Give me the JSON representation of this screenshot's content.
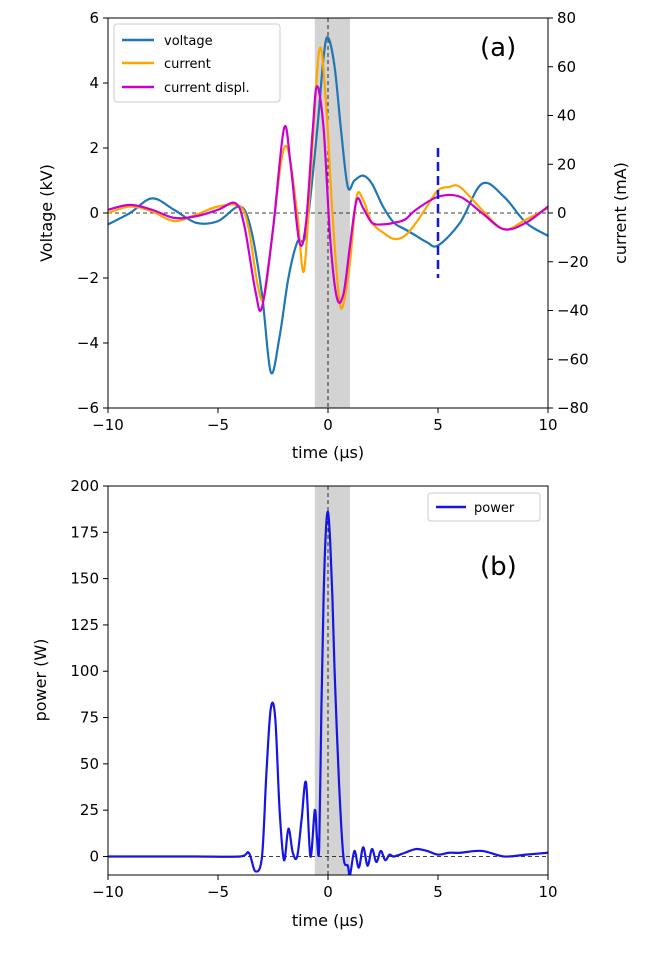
{
  "chart_data": [
    {
      "type": "line",
      "panel_label": "(a)",
      "xlabel": "time (μs)",
      "ylabel": "Voltage (kV)",
      "y2label": "current (mA)",
      "xlim": [
        -10,
        10
      ],
      "ylim": [
        -6,
        6
      ],
      "y2lim": [
        -80,
        80
      ],
      "xticks": [
        -10,
        -5,
        0,
        5,
        10
      ],
      "yticks": [
        -6,
        -4,
        -2,
        0,
        2,
        4,
        6
      ],
      "y2ticks": [
        -80,
        -60,
        -40,
        -20,
        0,
        20,
        40,
        60,
        80
      ],
      "shaded_region": [
        -0.6,
        1.0
      ],
      "vertical_marker": {
        "x": 5.0,
        "y_range": [
          -2.0,
          2.0
        ],
        "color": "#1515e6"
      },
      "legend_position": "top-left",
      "series": [
        {
          "name": "voltage",
          "color": "#1f77b4",
          "axis": "left",
          "x": [
            -10,
            -9,
            -8,
            -7,
            -6,
            -5,
            -4,
            -3.5,
            -3,
            -2.6,
            -2.2,
            -1.8,
            -1.4,
            -1,
            -0.5,
            -0.2,
            0,
            0.3,
            0.6,
            0.9,
            1.2,
            1.6,
            2,
            2.5,
            3,
            3.5,
            4,
            4.5,
            5,
            6,
            7,
            8,
            9,
            10
          ],
          "y": [
            -0.35,
            0.0,
            0.45,
            0.1,
            -0.3,
            -0.25,
            0.2,
            -0.5,
            -2.5,
            -4.9,
            -3.8,
            -2.0,
            -0.9,
            -0.6,
            2.5,
            4.8,
            5.4,
            4.5,
            2.5,
            0.8,
            1.0,
            1.15,
            0.9,
            0.2,
            -0.3,
            -0.5,
            -0.7,
            -0.9,
            -1.0,
            -0.3,
            0.9,
            0.5,
            -0.3,
            -0.7
          ]
        },
        {
          "name": "current",
          "color": "#ffa500",
          "axis": "left",
          "x": [
            -10,
            -9,
            -8,
            -7,
            -6,
            -5,
            -4,
            -3.6,
            -3.2,
            -2.9,
            -2.5,
            -2.1,
            -1.8,
            -1.4,
            -1.1,
            -0.8,
            -0.4,
            -0.1,
            0.2,
            0.5,
            0.7,
            1.0,
            1.3,
            1.6,
            2.0,
            2.5,
            3.0,
            3.5,
            4.0,
            4.5,
            5.0,
            5.5,
            6.0,
            7.0,
            8.0,
            9.0,
            10.0
          ],
          "y": [
            0.0,
            0.2,
            0.05,
            -0.25,
            -0.05,
            0.2,
            0.2,
            -0.5,
            -2.2,
            -2.6,
            -0.5,
            1.7,
            1.9,
            0.0,
            -1.8,
            1.0,
            5.0,
            3.5,
            0.0,
            -2.6,
            -2.8,
            -1.5,
            0.5,
            0.4,
            -0.3,
            -0.6,
            -0.8,
            -0.7,
            -0.3,
            0.2,
            0.7,
            0.8,
            0.8,
            0.1,
            -0.5,
            -0.2,
            0.15
          ]
        },
        {
          "name": "current displ.",
          "color": "#cc00cc",
          "axis": "left",
          "x": [
            -10,
            -9,
            -8,
            -7,
            -6,
            -5,
            -4.2,
            -3.8,
            -3.3,
            -3.0,
            -2.5,
            -2.0,
            -1.7,
            -1.3,
            -1.0,
            -0.7,
            -0.5,
            -0.2,
            0.1,
            0.4,
            0.7,
            1.0,
            1.3,
            1.6,
            2.0,
            2.5,
            3.0,
            3.5,
            4.0,
            5.0,
            6.0,
            7.0,
            8.0,
            9.0,
            10.0
          ],
          "y": [
            0.1,
            0.25,
            0.1,
            -0.15,
            -0.1,
            0.1,
            0.3,
            -0.4,
            -2.4,
            -2.9,
            -0.5,
            2.6,
            1.5,
            -0.9,
            -0.3,
            2.5,
            3.9,
            2.6,
            -0.8,
            -2.6,
            -2.5,
            -1.0,
            0.4,
            0.15,
            -0.3,
            -0.35,
            -0.3,
            -0.2,
            0.1,
            0.5,
            0.5,
            0.0,
            -0.5,
            -0.3,
            0.2
          ]
        }
      ]
    },
    {
      "type": "line",
      "panel_label": "(b)",
      "xlabel": "time (μs)",
      "ylabel": "power (W)",
      "xlim": [
        -10,
        10
      ],
      "ylim": [
        -10,
        200
      ],
      "xticks": [
        -10,
        -5,
        0,
        5,
        10
      ],
      "yticks": [
        0,
        25,
        50,
        75,
        100,
        125,
        150,
        175,
        200
      ],
      "shaded_region": [
        -0.6,
        1.0
      ],
      "legend_position": "top-right",
      "series": [
        {
          "name": "power",
          "color": "#1515e6",
          "x": [
            -10,
            -8,
            -6,
            -4,
            -3.6,
            -3.3,
            -3.0,
            -2.8,
            -2.6,
            -2.4,
            -2.2,
            -2.0,
            -1.8,
            -1.6,
            -1.4,
            -1.2,
            -1.0,
            -0.8,
            -0.6,
            -0.5,
            -0.4,
            -0.3,
            -0.2,
            -0.1,
            0.0,
            0.1,
            0.2,
            0.3,
            0.5,
            0.7,
            0.9,
            1.0,
            1.2,
            1.4,
            1.6,
            1.8,
            2.0,
            2.2,
            2.4,
            2.6,
            2.8,
            3.0,
            3.5,
            4.0,
            4.5,
            5.0,
            5.5,
            6.0,
            7.0,
            8.0,
            9.0,
            10.0
          ],
          "y": [
            0,
            0,
            0,
            0,
            2,
            -8,
            0,
            45,
            80,
            75,
            25,
            -2,
            15,
            2,
            0,
            20,
            40,
            0,
            25,
            10,
            5,
            80,
            140,
            175,
            186,
            170,
            140,
            100,
            40,
            0,
            -5,
            -10,
            3,
            -6,
            5,
            -5,
            4,
            -3,
            3,
            -2,
            1,
            0,
            2,
            4,
            3,
            1,
            2,
            2,
            3,
            0,
            1,
            2
          ]
        }
      ]
    }
  ]
}
